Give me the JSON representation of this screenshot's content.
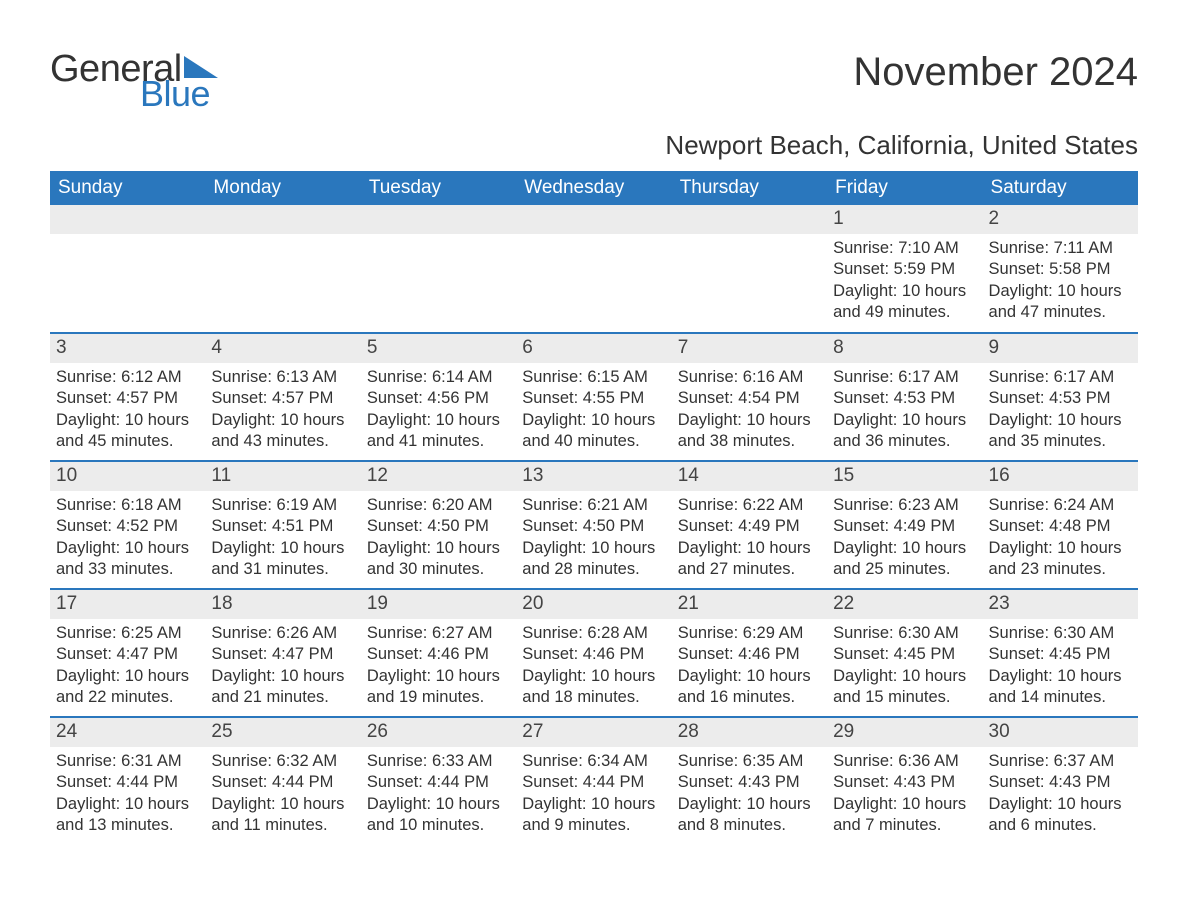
{
  "logo": {
    "text1": "General",
    "text2": "Blue",
    "accent_color": "#2a77bd",
    "text_color": "#333333"
  },
  "title": "November 2024",
  "subtitle": "Newport Beach, California, United States",
  "colors": {
    "header_bg": "#2a77bd",
    "header_text": "#ffffff",
    "row_border": "#2a77bd",
    "daynum_bg": "#ececec",
    "body_bg": "#ffffff",
    "text": "#333333"
  },
  "fonts": {
    "family": "Arial, Helvetica, sans-serif",
    "title_size": 40,
    "subtitle_size": 26,
    "header_size": 19,
    "daynum_size": 19,
    "body_size": 16.5
  },
  "columns": [
    "Sunday",
    "Monday",
    "Tuesday",
    "Wednesday",
    "Thursday",
    "Friday",
    "Saturday"
  ],
  "weeks": [
    [
      null,
      null,
      null,
      null,
      null,
      {
        "day": "1",
        "sunrise": "Sunrise: 7:10 AM",
        "sunset": "Sunset: 5:59 PM",
        "daylight1": "Daylight: 10 hours",
        "daylight2": "and 49 minutes."
      },
      {
        "day": "2",
        "sunrise": "Sunrise: 7:11 AM",
        "sunset": "Sunset: 5:58 PM",
        "daylight1": "Daylight: 10 hours",
        "daylight2": "and 47 minutes."
      }
    ],
    [
      {
        "day": "3",
        "sunrise": "Sunrise: 6:12 AM",
        "sunset": "Sunset: 4:57 PM",
        "daylight1": "Daylight: 10 hours",
        "daylight2": "and 45 minutes."
      },
      {
        "day": "4",
        "sunrise": "Sunrise: 6:13 AM",
        "sunset": "Sunset: 4:57 PM",
        "daylight1": "Daylight: 10 hours",
        "daylight2": "and 43 minutes."
      },
      {
        "day": "5",
        "sunrise": "Sunrise: 6:14 AM",
        "sunset": "Sunset: 4:56 PM",
        "daylight1": "Daylight: 10 hours",
        "daylight2": "and 41 minutes."
      },
      {
        "day": "6",
        "sunrise": "Sunrise: 6:15 AM",
        "sunset": "Sunset: 4:55 PM",
        "daylight1": "Daylight: 10 hours",
        "daylight2": "and 40 minutes."
      },
      {
        "day": "7",
        "sunrise": "Sunrise: 6:16 AM",
        "sunset": "Sunset: 4:54 PM",
        "daylight1": "Daylight: 10 hours",
        "daylight2": "and 38 minutes."
      },
      {
        "day": "8",
        "sunrise": "Sunrise: 6:17 AM",
        "sunset": "Sunset: 4:53 PM",
        "daylight1": "Daylight: 10 hours",
        "daylight2": "and 36 minutes."
      },
      {
        "day": "9",
        "sunrise": "Sunrise: 6:17 AM",
        "sunset": "Sunset: 4:53 PM",
        "daylight1": "Daylight: 10 hours",
        "daylight2": "and 35 minutes."
      }
    ],
    [
      {
        "day": "10",
        "sunrise": "Sunrise: 6:18 AM",
        "sunset": "Sunset: 4:52 PM",
        "daylight1": "Daylight: 10 hours",
        "daylight2": "and 33 minutes."
      },
      {
        "day": "11",
        "sunrise": "Sunrise: 6:19 AM",
        "sunset": "Sunset: 4:51 PM",
        "daylight1": "Daylight: 10 hours",
        "daylight2": "and 31 minutes."
      },
      {
        "day": "12",
        "sunrise": "Sunrise: 6:20 AM",
        "sunset": "Sunset: 4:50 PM",
        "daylight1": "Daylight: 10 hours",
        "daylight2": "and 30 minutes."
      },
      {
        "day": "13",
        "sunrise": "Sunrise: 6:21 AM",
        "sunset": "Sunset: 4:50 PM",
        "daylight1": "Daylight: 10 hours",
        "daylight2": "and 28 minutes."
      },
      {
        "day": "14",
        "sunrise": "Sunrise: 6:22 AM",
        "sunset": "Sunset: 4:49 PM",
        "daylight1": "Daylight: 10 hours",
        "daylight2": "and 27 minutes."
      },
      {
        "day": "15",
        "sunrise": "Sunrise: 6:23 AM",
        "sunset": "Sunset: 4:49 PM",
        "daylight1": "Daylight: 10 hours",
        "daylight2": "and 25 minutes."
      },
      {
        "day": "16",
        "sunrise": "Sunrise: 6:24 AM",
        "sunset": "Sunset: 4:48 PM",
        "daylight1": "Daylight: 10 hours",
        "daylight2": "and 23 minutes."
      }
    ],
    [
      {
        "day": "17",
        "sunrise": "Sunrise: 6:25 AM",
        "sunset": "Sunset: 4:47 PM",
        "daylight1": "Daylight: 10 hours",
        "daylight2": "and 22 minutes."
      },
      {
        "day": "18",
        "sunrise": "Sunrise: 6:26 AM",
        "sunset": "Sunset: 4:47 PM",
        "daylight1": "Daylight: 10 hours",
        "daylight2": "and 21 minutes."
      },
      {
        "day": "19",
        "sunrise": "Sunrise: 6:27 AM",
        "sunset": "Sunset: 4:46 PM",
        "daylight1": "Daylight: 10 hours",
        "daylight2": "and 19 minutes."
      },
      {
        "day": "20",
        "sunrise": "Sunrise: 6:28 AM",
        "sunset": "Sunset: 4:46 PM",
        "daylight1": "Daylight: 10 hours",
        "daylight2": "and 18 minutes."
      },
      {
        "day": "21",
        "sunrise": "Sunrise: 6:29 AM",
        "sunset": "Sunset: 4:46 PM",
        "daylight1": "Daylight: 10 hours",
        "daylight2": "and 16 minutes."
      },
      {
        "day": "22",
        "sunrise": "Sunrise: 6:30 AM",
        "sunset": "Sunset: 4:45 PM",
        "daylight1": "Daylight: 10 hours",
        "daylight2": "and 15 minutes."
      },
      {
        "day": "23",
        "sunrise": "Sunrise: 6:30 AM",
        "sunset": "Sunset: 4:45 PM",
        "daylight1": "Daylight: 10 hours",
        "daylight2": "and 14 minutes."
      }
    ],
    [
      {
        "day": "24",
        "sunrise": "Sunrise: 6:31 AM",
        "sunset": "Sunset: 4:44 PM",
        "daylight1": "Daylight: 10 hours",
        "daylight2": "and 13 minutes."
      },
      {
        "day": "25",
        "sunrise": "Sunrise: 6:32 AM",
        "sunset": "Sunset: 4:44 PM",
        "daylight1": "Daylight: 10 hours",
        "daylight2": "and 11 minutes."
      },
      {
        "day": "26",
        "sunrise": "Sunrise: 6:33 AM",
        "sunset": "Sunset: 4:44 PM",
        "daylight1": "Daylight: 10 hours",
        "daylight2": "and 10 minutes."
      },
      {
        "day": "27",
        "sunrise": "Sunrise: 6:34 AM",
        "sunset": "Sunset: 4:44 PM",
        "daylight1": "Daylight: 10 hours",
        "daylight2": "and 9 minutes."
      },
      {
        "day": "28",
        "sunrise": "Sunrise: 6:35 AM",
        "sunset": "Sunset: 4:43 PM",
        "daylight1": "Daylight: 10 hours",
        "daylight2": "and 8 minutes."
      },
      {
        "day": "29",
        "sunrise": "Sunrise: 6:36 AM",
        "sunset": "Sunset: 4:43 PM",
        "daylight1": "Daylight: 10 hours",
        "daylight2": "and 7 minutes."
      },
      {
        "day": "30",
        "sunrise": "Sunrise: 6:37 AM",
        "sunset": "Sunset: 4:43 PM",
        "daylight1": "Daylight: 10 hours",
        "daylight2": "and 6 minutes."
      }
    ]
  ]
}
